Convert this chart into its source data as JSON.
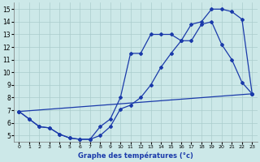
{
  "xlabel": "Graphe des températures (°c)",
  "xlim": [
    -0.5,
    23.5
  ],
  "ylim": [
    4.5,
    15.5
  ],
  "yticks": [
    5,
    6,
    7,
    8,
    9,
    10,
    11,
    12,
    13,
    14,
    15
  ],
  "xticks": [
    0,
    1,
    2,
    3,
    4,
    5,
    6,
    7,
    8,
    9,
    10,
    11,
    12,
    13,
    14,
    15,
    16,
    17,
    18,
    19,
    20,
    21,
    22,
    23
  ],
  "bg_color": "#cce8e8",
  "grid_color": "#aacccc",
  "line_color": "#1a3aaa",
  "line1_x": [
    0,
    1,
    2,
    3,
    4,
    5,
    6,
    7,
    8,
    9,
    10,
    11,
    12,
    13,
    14,
    15,
    16,
    17,
    18,
    19,
    20,
    21,
    22,
    23
  ],
  "line1_y": [
    6.9,
    6.3,
    5.7,
    5.6,
    5.1,
    4.8,
    4.7,
    4.7,
    5.0,
    5.7,
    7.1,
    7.4,
    8.0,
    9.0,
    10.4,
    11.5,
    12.5,
    12.5,
    13.8,
    14.0,
    12.2,
    11.0,
    9.2,
    8.3
  ],
  "line2_x": [
    0,
    1,
    2,
    3,
    4,
    5,
    6,
    7,
    8,
    9,
    10,
    11,
    12,
    13,
    14,
    15,
    16,
    17,
    18,
    19,
    20,
    21,
    22,
    23
  ],
  "line2_y": [
    6.9,
    6.3,
    5.7,
    5.6,
    5.1,
    4.8,
    4.7,
    4.7,
    5.7,
    6.3,
    8.0,
    11.5,
    11.5,
    13.0,
    13.0,
    13.0,
    12.5,
    13.8,
    14.0,
    15.0,
    15.0,
    14.8,
    14.2,
    8.3
  ],
  "line3_x": [
    0,
    23
  ],
  "line3_y": [
    6.9,
    8.3
  ]
}
